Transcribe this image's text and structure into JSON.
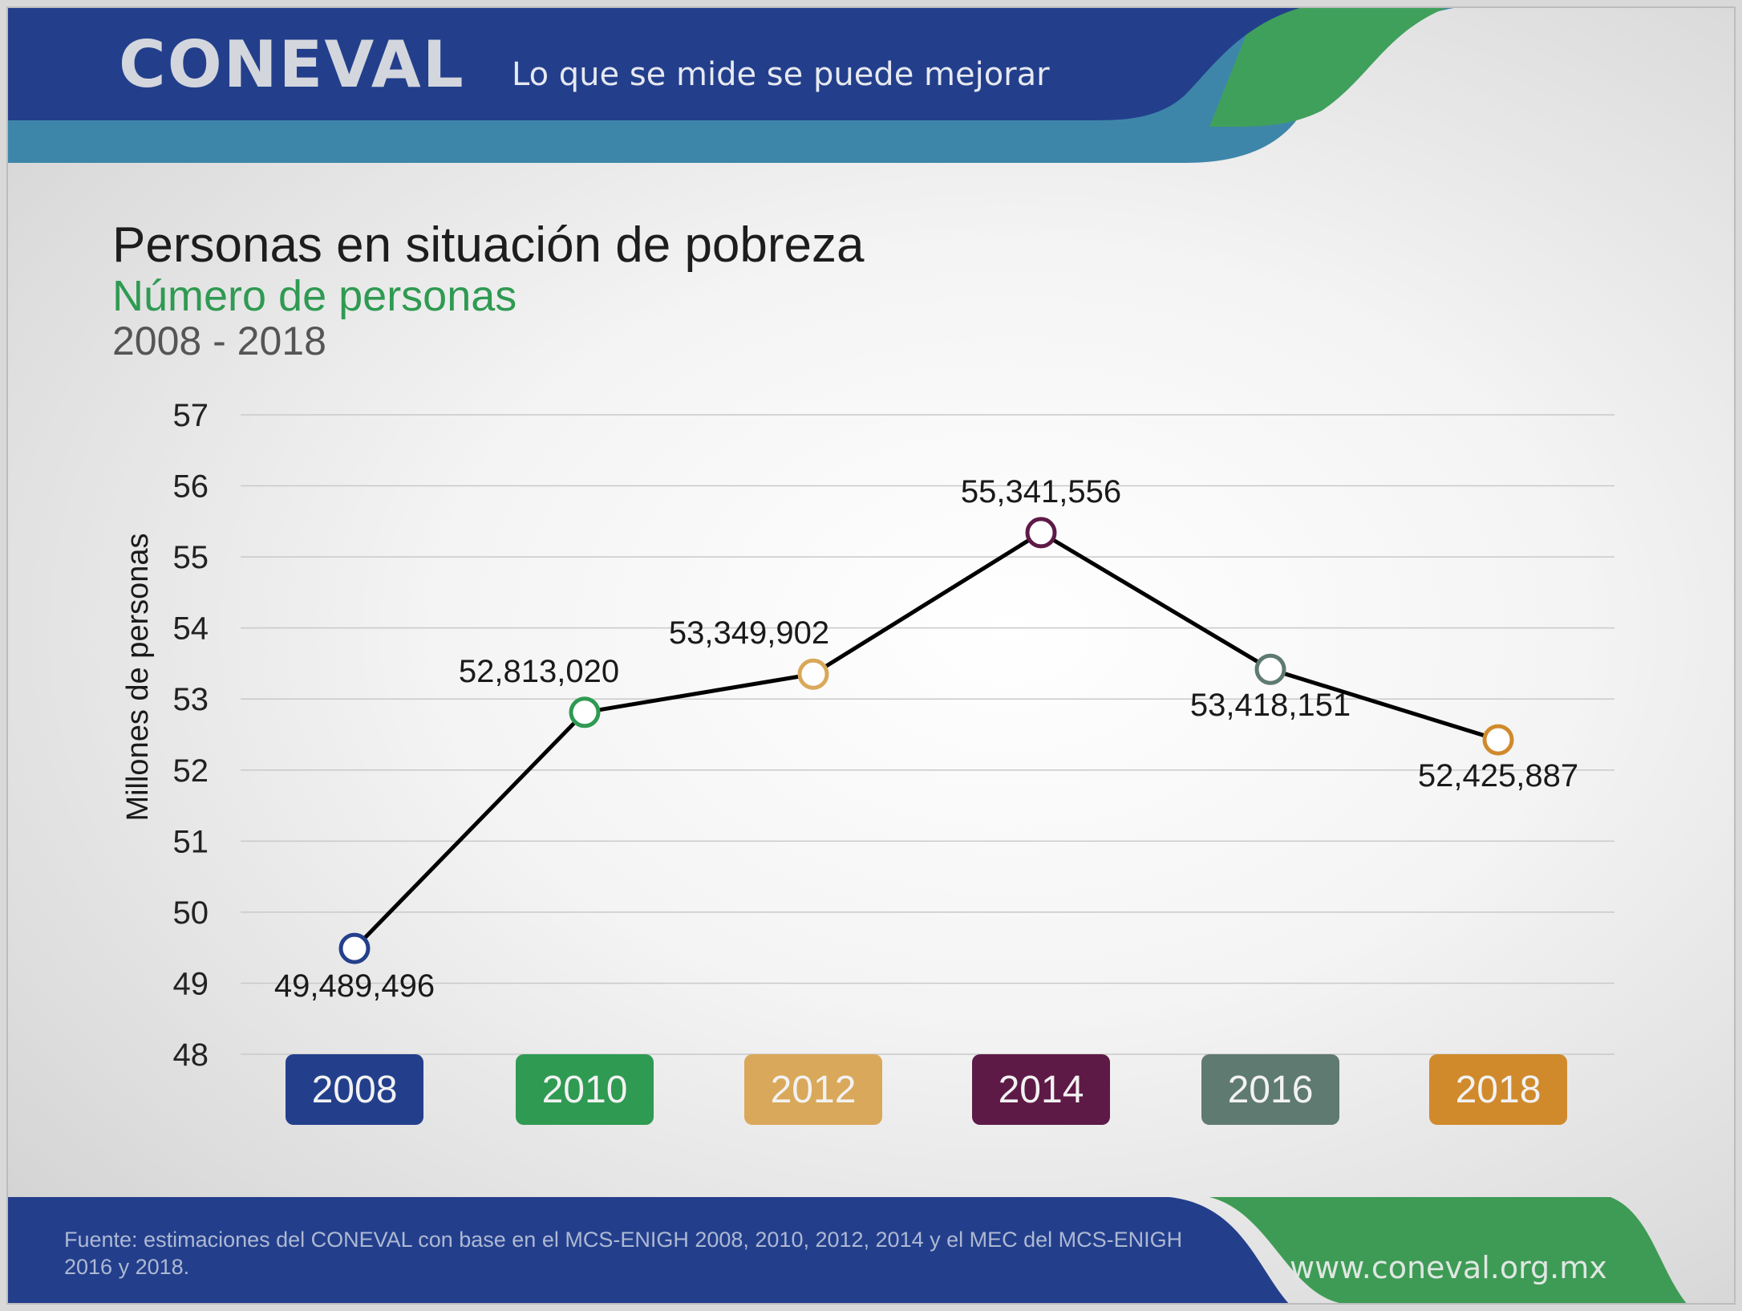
{
  "header": {
    "logo": "CONEVAL",
    "tagline": "Lo que se mide se puede mejorar",
    "colors": {
      "blue": "#233f8c",
      "teal": "#3f86a8",
      "green": "#3e9b55"
    }
  },
  "chart_data": {
    "type": "line",
    "title": "Personas en situación de pobreza",
    "subtitle": "Número de personas",
    "period": "2008 - 2018",
    "ylabel": "Millones de personas",
    "xlabel": "",
    "ylim": [
      48,
      57
    ],
    "yticks": [
      "57",
      "56",
      "55",
      "54",
      "53",
      "52",
      "51",
      "50",
      "49",
      "48"
    ],
    "grid": true,
    "categories": [
      "2008",
      "2010",
      "2012",
      "2014",
      "2016",
      "2018"
    ],
    "values": [
      49.489496,
      52.81302,
      53.349902,
      55.341556,
      53.418151,
      52.425887
    ],
    "labels": [
      "49,489,496",
      "52,813,020",
      "53,349,902",
      "55,341,556",
      "53,418,151",
      "52,425,887"
    ],
    "category_colors": [
      "#233f8c",
      "#2f9a52",
      "#d9a85a",
      "#5e1a47",
      "#5f7a70",
      "#d08a2c"
    ],
    "line_color": "#000000"
  },
  "footer": {
    "source": "Fuente: estimaciones del CONEVAL con base en el MCS-ENIGH 2008, 2010, 2012, 2014 y el MEC del MCS-ENIGH 2016 y 2018.",
    "url": "www.coneval.org.mx"
  }
}
